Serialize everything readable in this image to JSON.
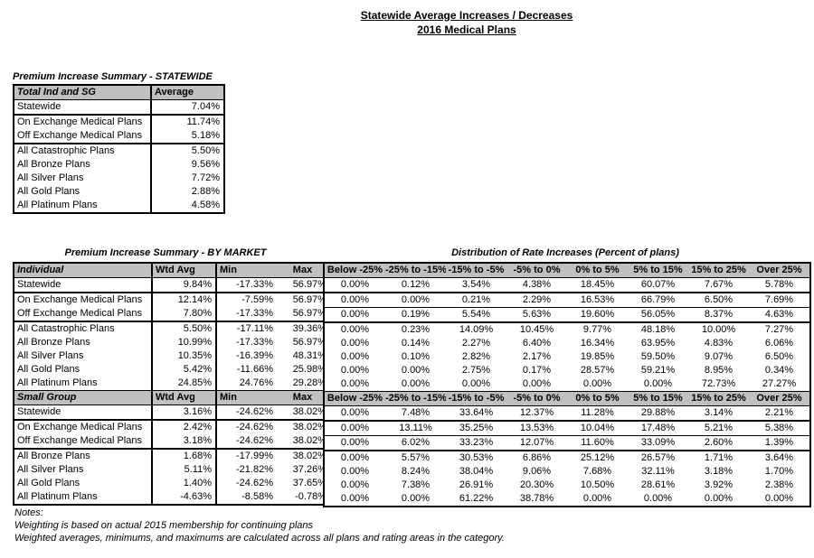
{
  "page_title": {
    "line1": "Statewide Average Increases / Decreases",
    "line2": "2016 Medical Plans"
  },
  "colors": {
    "header_bg": "#c0c0c0",
    "border": "#000000",
    "text": "#000000",
    "background": "#ffffff"
  },
  "statewide_table": {
    "title": "Premium Increase Summary - STATEWIDE",
    "header": {
      "label": "Total Ind and SG",
      "value": "Average"
    },
    "groups": [
      [
        {
          "label": "Statewide",
          "value": "7.04%"
        }
      ],
      [
        {
          "label": "On Exchange Medical Plans",
          "value": "11.74%"
        },
        {
          "label": "Off Exchange Medical Plans",
          "value": "5.18%"
        }
      ],
      [
        {
          "label": "All Catastrophic Plans",
          "value": "5.50%"
        },
        {
          "label": "All Bronze Plans",
          "value": "9.56%"
        },
        {
          "label": "All Silver Plans",
          "value": "7.72%"
        },
        {
          "label": "All Gold Plans",
          "value": "2.88%"
        },
        {
          "label": "All Platinum Plans",
          "value": "4.58%"
        }
      ]
    ]
  },
  "by_market_table": {
    "title": "Premium Increase Summary - BY MARKET",
    "sections": [
      {
        "header": {
          "label": "Individual",
          "cols": [
            "Wtd Avg",
            "Min",
            "Max"
          ]
        },
        "groups": [
          [
            [
              "Statewide",
              "9.84%",
              "-17.33%",
              "56.97%"
            ]
          ],
          [
            [
              "On Exchange Medical Plans",
              "12.14%",
              "-7.59%",
              "56.97%"
            ],
            [
              "Off Exchange Medical Plans",
              "7.80%",
              "-17.33%",
              "56.97%"
            ]
          ],
          [
            [
              "All Catastrophic Plans",
              "5.50%",
              "-17.11%",
              "39.36%"
            ],
            [
              "All Bronze Plans",
              "10.99%",
              "-17.33%",
              "56.97%"
            ],
            [
              "All Silver Plans",
              "10.35%",
              "-16.39%",
              "48.31%"
            ],
            [
              "All Gold Plans",
              "5.42%",
              "-11.66%",
              "25.98%"
            ],
            [
              "All Platinum Plans",
              "24.85%",
              "24.76%",
              "29.28%"
            ]
          ]
        ]
      },
      {
        "header": {
          "label": "Small Group",
          "cols": [
            "Wtd Avg",
            "Min",
            "Max"
          ]
        },
        "groups": [
          [
            [
              "Statewide",
              "3.16%",
              "-24.62%",
              "38.02%"
            ]
          ],
          [
            [
              "On Exchange Medical Plans",
              "2.42%",
              "-24.62%",
              "38.02%"
            ],
            [
              "Off Exchange Medical Plans",
              "3.18%",
              "-24.62%",
              "38.02%"
            ]
          ],
          [
            [
              "All Bronze Plans",
              "1.68%",
              "-17.99%",
              "38.02%"
            ],
            [
              "All Silver Plans",
              "5.11%",
              "-21.82%",
              "37.26%"
            ],
            [
              "All Gold Plans",
              "1.40%",
              "-24.62%",
              "37.65%"
            ],
            [
              "All Platinum Plans",
              "-4.63%",
              "-8.58%",
              "-0.78%"
            ]
          ]
        ]
      }
    ]
  },
  "distribution_table": {
    "title": "Distribution of Rate Increases (Percent of plans)",
    "columns": [
      "Below -25%",
      "-25% to -15%",
      "-15% to -5%",
      "-5% to 0%",
      "0% to 5%",
      "5% to 15%",
      "15% to 25%",
      "Over 25%"
    ],
    "sections": [
      {
        "groups": [
          [
            [
              "0.00%",
              "0.12%",
              "3.54%",
              "4.38%",
              "18.45%",
              "60.07%",
              "7.67%",
              "5.78%"
            ]
          ],
          [
            [
              "0.00%",
              "0.00%",
              "0.21%",
              "2.29%",
              "16.53%",
              "66.79%",
              "6.50%",
              "7.69%"
            ],
            [
              "0.00%",
              "0.19%",
              "5.54%",
              "5.63%",
              "19.60%",
              "56.05%",
              "8.37%",
              "4.63%"
            ]
          ],
          [
            [
              "0.00%",
              "0.23%",
              "14.09%",
              "10.45%",
              "9.77%",
              "48.18%",
              "10.00%",
              "7.27%"
            ],
            [
              "0.00%",
              "0.14%",
              "2.27%",
              "6.40%",
              "16.34%",
              "63.95%",
              "4.83%",
              "6.06%"
            ],
            [
              "0.00%",
              "0.10%",
              "2.82%",
              "2.17%",
              "19.85%",
              "59.50%",
              "9.07%",
              "6.50%"
            ],
            [
              "0.00%",
              "0.00%",
              "2.75%",
              "0.17%",
              "28.57%",
              "59.21%",
              "8.95%",
              "0.34%"
            ],
            [
              "0.00%",
              "0.00%",
              "0.00%",
              "0.00%",
              "0.00%",
              "0.00%",
              "72.73%",
              "27.27%"
            ]
          ]
        ]
      },
      {
        "groups": [
          [
            [
              "0.00%",
              "7.48%",
              "33.64%",
              "12.37%",
              "11.28%",
              "29.88%",
              "3.14%",
              "2.21%"
            ]
          ],
          [
            [
              "0.00%",
              "13.11%",
              "35.25%",
              "13.53%",
              "10.04%",
              "17.48%",
              "5.21%",
              "5.38%"
            ],
            [
              "0.00%",
              "6.02%",
              "33.23%",
              "12.07%",
              "11.60%",
              "33.09%",
              "2.60%",
              "1.39%"
            ]
          ],
          [
            [
              "0.00%",
              "5.57%",
              "30.53%",
              "6.86%",
              "25.12%",
              "26.57%",
              "1.71%",
              "3.64%"
            ],
            [
              "0.00%",
              "8.24%",
              "38.04%",
              "9.06%",
              "7.68%",
              "32.11%",
              "3.18%",
              "1.70%"
            ],
            [
              "0.00%",
              "7.38%",
              "26.91%",
              "20.30%",
              "10.50%",
              "28.61%",
              "3.92%",
              "2.38%"
            ],
            [
              "0.00%",
              "0.00%",
              "61.22%",
              "38.78%",
              "0.00%",
              "0.00%",
              "0.00%",
              "0.00%"
            ]
          ]
        ]
      }
    ]
  },
  "notes": {
    "heading": "Notes:",
    "line1": "Weighting is based on actual 2015 membership for continuing plans",
    "line2": "Weighted averages, minimums, and maximums are calculated across all plans and rating areas in the category."
  }
}
